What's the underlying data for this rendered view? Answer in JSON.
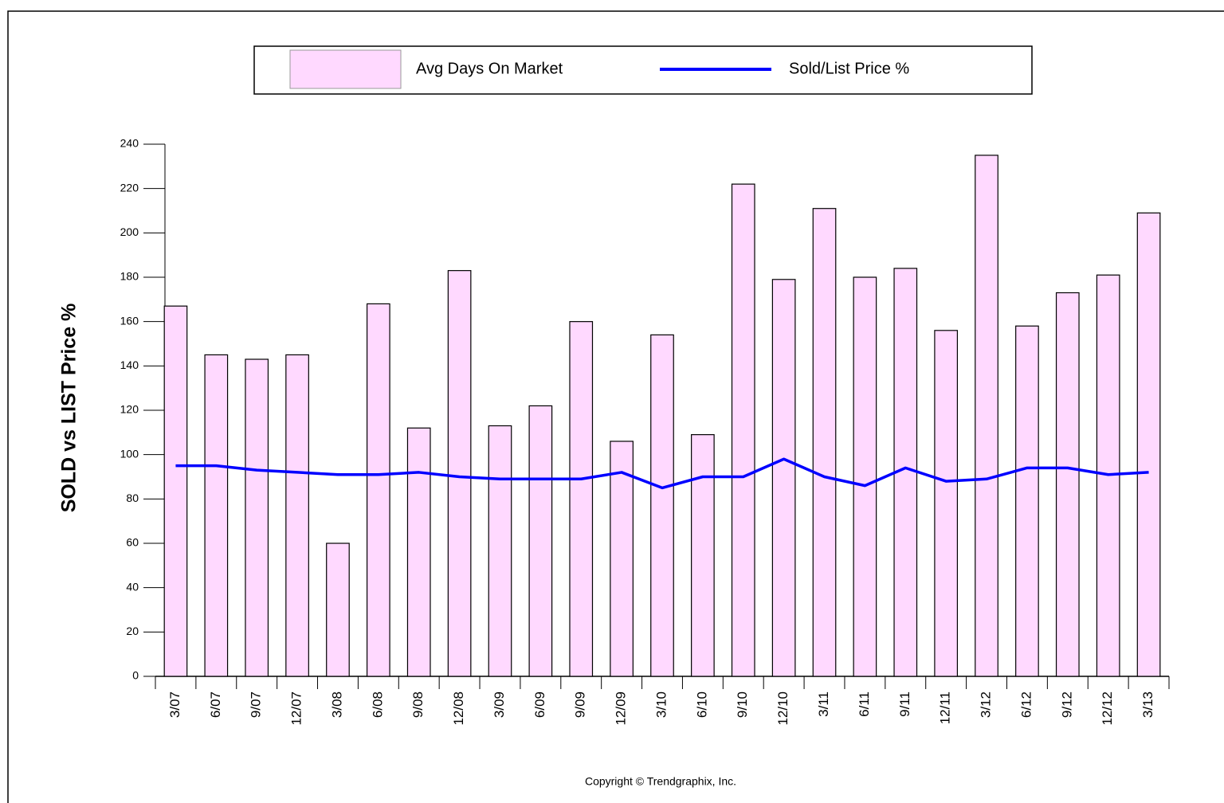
{
  "chart_data": {
    "type": "bar",
    "y_label": "SOLD vs LIST Price %",
    "footer": "Copyright © Trendgraphix, Inc.",
    "categories": [
      "3/07",
      "6/07",
      "9/07",
      "12/07",
      "3/08",
      "6/08",
      "9/08",
      "12/08",
      "3/09",
      "6/09",
      "9/09",
      "12/09",
      "3/10",
      "6/10",
      "9/10",
      "12/10",
      "3/11",
      "6/11",
      "9/11",
      "12/11",
      "3/12",
      "6/12",
      "9/12",
      "12/12",
      "3/13"
    ],
    "series": [
      {
        "name": "Avg Days On Market",
        "type": "bar",
        "color": "#ffd9ff",
        "values": [
          167,
          145,
          143,
          145,
          60,
          168,
          112,
          183,
          113,
          122,
          160,
          106,
          154,
          109,
          222,
          179,
          211,
          180,
          184,
          156,
          235,
          158,
          173,
          181,
          209
        ]
      },
      {
        "name": "Sold/List Price %",
        "type": "line",
        "color": "#0000ff",
        "values": [
          95,
          95,
          93,
          92,
          91,
          91,
          92,
          90,
          89,
          89,
          89,
          92,
          85,
          90,
          90,
          98,
          90,
          86,
          94,
          88,
          89,
          94,
          94,
          91,
          92
        ]
      }
    ],
    "ylim": [
      0,
      240
    ],
    "yticks": [
      0,
      20,
      40,
      60,
      80,
      100,
      120,
      140,
      160,
      180,
      200,
      220,
      240
    ]
  }
}
